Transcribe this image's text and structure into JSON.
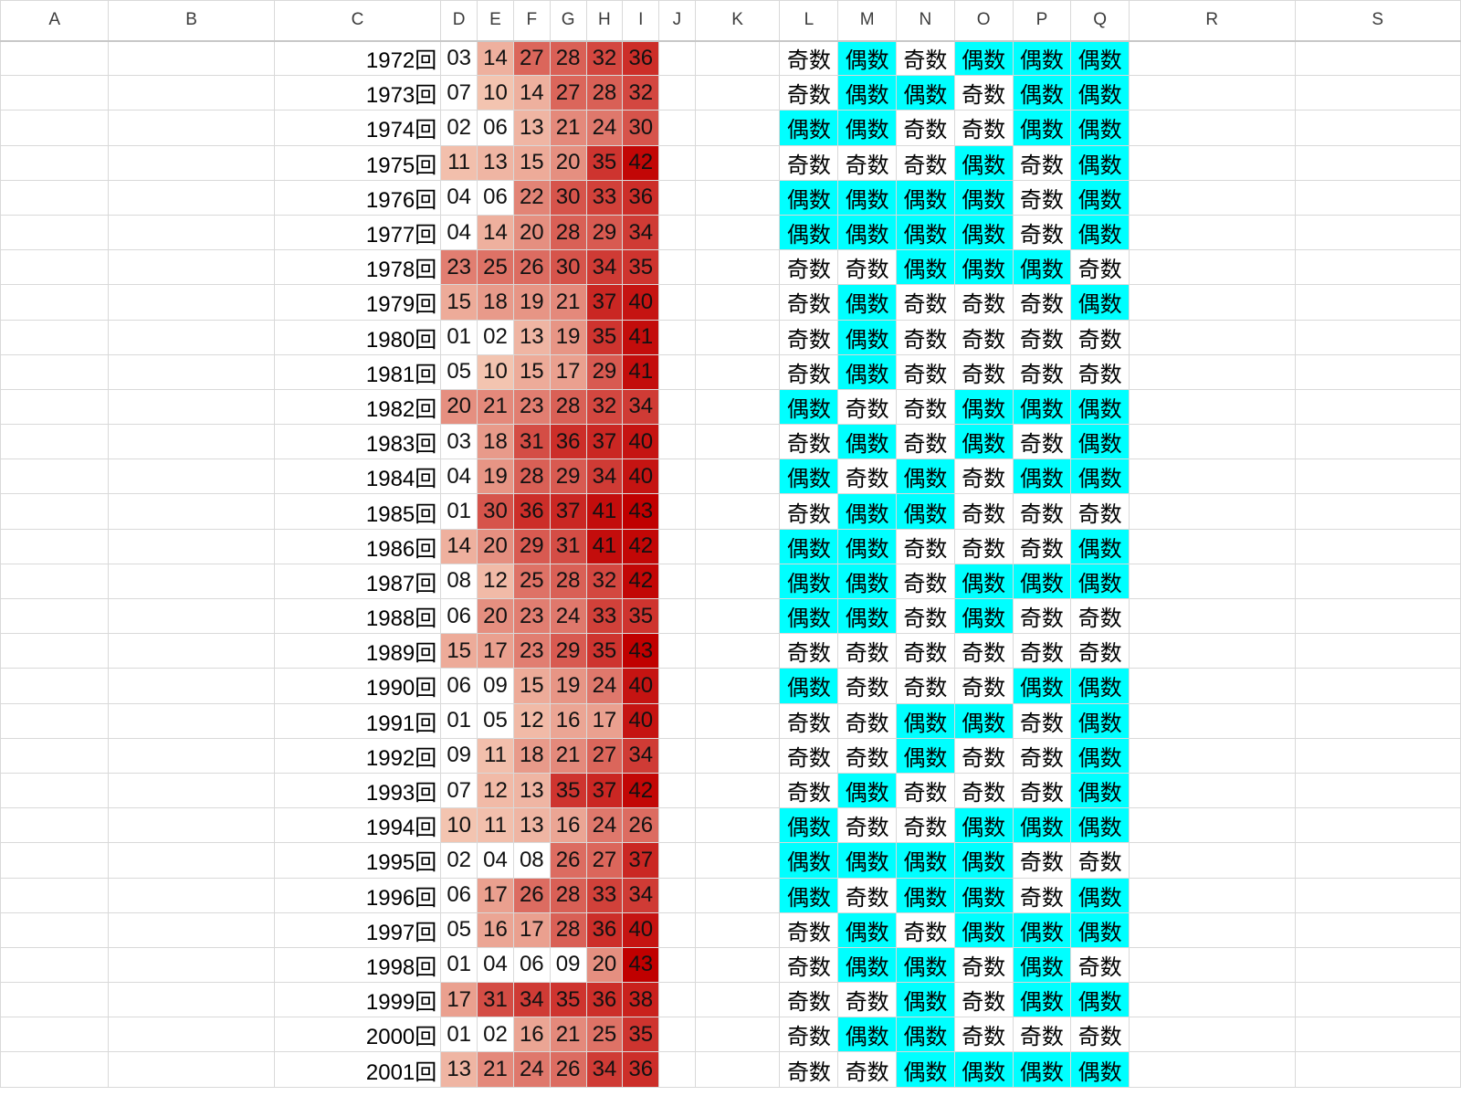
{
  "columns": [
    "A",
    "B",
    "C",
    "D",
    "E",
    "F",
    "G",
    "H",
    "I",
    "J",
    "K",
    "L",
    "M",
    "N",
    "O",
    "P",
    "Q",
    "R",
    "S"
  ],
  "colors": {
    "even_fill": "#00ffff",
    "odd_fill": "#ffffff",
    "heat_low": "#fde9d1",
    "heat_high": "#c00000",
    "heat_min_value": 1,
    "heat_max_value": 43
  },
  "rows": [
    {
      "label": "1972回",
      "nums": [
        "03",
        "14",
        "27",
        "28",
        "32",
        "36"
      ],
      "parity": [
        "奇数",
        "偶数",
        "奇数",
        "偶数",
        "偶数",
        "偶数"
      ]
    },
    {
      "label": "1973回",
      "nums": [
        "07",
        "10",
        "14",
        "27",
        "28",
        "32"
      ],
      "parity": [
        "奇数",
        "偶数",
        "偶数",
        "奇数",
        "偶数",
        "偶数"
      ]
    },
    {
      "label": "1974回",
      "nums": [
        "02",
        "06",
        "13",
        "21",
        "24",
        "30"
      ],
      "parity": [
        "偶数",
        "偶数",
        "奇数",
        "奇数",
        "偶数",
        "偶数"
      ]
    },
    {
      "label": "1975回",
      "nums": [
        "11",
        "13",
        "15",
        "20",
        "35",
        "42"
      ],
      "parity": [
        "奇数",
        "奇数",
        "奇数",
        "偶数",
        "奇数",
        "偶数"
      ]
    },
    {
      "label": "1976回",
      "nums": [
        "04",
        "06",
        "22",
        "30",
        "33",
        "36"
      ],
      "parity": [
        "偶数",
        "偶数",
        "偶数",
        "偶数",
        "奇数",
        "偶数"
      ]
    },
    {
      "label": "1977回",
      "nums": [
        "04",
        "14",
        "20",
        "28",
        "29",
        "34"
      ],
      "parity": [
        "偶数",
        "偶数",
        "偶数",
        "偶数",
        "奇数",
        "偶数"
      ]
    },
    {
      "label": "1978回",
      "nums": [
        "23",
        "25",
        "26",
        "30",
        "34",
        "35"
      ],
      "parity": [
        "奇数",
        "奇数",
        "偶数",
        "偶数",
        "偶数",
        "奇数"
      ]
    },
    {
      "label": "1979回",
      "nums": [
        "15",
        "18",
        "19",
        "21",
        "37",
        "40"
      ],
      "parity": [
        "奇数",
        "偶数",
        "奇数",
        "奇数",
        "奇数",
        "偶数"
      ]
    },
    {
      "label": "1980回",
      "nums": [
        "01",
        "02",
        "13",
        "19",
        "35",
        "41"
      ],
      "parity": [
        "奇数",
        "偶数",
        "奇数",
        "奇数",
        "奇数",
        "奇数"
      ]
    },
    {
      "label": "1981回",
      "nums": [
        "05",
        "10",
        "15",
        "17",
        "29",
        "41"
      ],
      "parity": [
        "奇数",
        "偶数",
        "奇数",
        "奇数",
        "奇数",
        "奇数"
      ]
    },
    {
      "label": "1982回",
      "nums": [
        "20",
        "21",
        "23",
        "28",
        "32",
        "34"
      ],
      "parity": [
        "偶数",
        "奇数",
        "奇数",
        "偶数",
        "偶数",
        "偶数"
      ]
    },
    {
      "label": "1983回",
      "nums": [
        "03",
        "18",
        "31",
        "36",
        "37",
        "40"
      ],
      "parity": [
        "奇数",
        "偶数",
        "奇数",
        "偶数",
        "奇数",
        "偶数"
      ]
    },
    {
      "label": "1984回",
      "nums": [
        "04",
        "19",
        "28",
        "29",
        "34",
        "40"
      ],
      "parity": [
        "偶数",
        "奇数",
        "偶数",
        "奇数",
        "偶数",
        "偶数"
      ]
    },
    {
      "label": "1985回",
      "nums": [
        "01",
        "30",
        "36",
        "37",
        "41",
        "43"
      ],
      "parity": [
        "奇数",
        "偶数",
        "偶数",
        "奇数",
        "奇数",
        "奇数"
      ]
    },
    {
      "label": "1986回",
      "nums": [
        "14",
        "20",
        "29",
        "31",
        "41",
        "42"
      ],
      "parity": [
        "偶数",
        "偶数",
        "奇数",
        "奇数",
        "奇数",
        "偶数"
      ]
    },
    {
      "label": "1987回",
      "nums": [
        "08",
        "12",
        "25",
        "28",
        "32",
        "42"
      ],
      "parity": [
        "偶数",
        "偶数",
        "奇数",
        "偶数",
        "偶数",
        "偶数"
      ]
    },
    {
      "label": "1988回",
      "nums": [
        "06",
        "20",
        "23",
        "24",
        "33",
        "35"
      ],
      "parity": [
        "偶数",
        "偶数",
        "奇数",
        "偶数",
        "奇数",
        "奇数"
      ]
    },
    {
      "label": "1989回",
      "nums": [
        "15",
        "17",
        "23",
        "29",
        "35",
        "43"
      ],
      "parity": [
        "奇数",
        "奇数",
        "奇数",
        "奇数",
        "奇数",
        "奇数"
      ]
    },
    {
      "label": "1990回",
      "nums": [
        "06",
        "09",
        "15",
        "19",
        "24",
        "40"
      ],
      "parity": [
        "偶数",
        "奇数",
        "奇数",
        "奇数",
        "偶数",
        "偶数"
      ]
    },
    {
      "label": "1991回",
      "nums": [
        "01",
        "05",
        "12",
        "16",
        "17",
        "40"
      ],
      "parity": [
        "奇数",
        "奇数",
        "偶数",
        "偶数",
        "奇数",
        "偶数"
      ]
    },
    {
      "label": "1992回",
      "nums": [
        "09",
        "11",
        "18",
        "21",
        "27",
        "34"
      ],
      "parity": [
        "奇数",
        "奇数",
        "偶数",
        "奇数",
        "奇数",
        "偶数"
      ]
    },
    {
      "label": "1993回",
      "nums": [
        "07",
        "12",
        "13",
        "35",
        "37",
        "42"
      ],
      "parity": [
        "奇数",
        "偶数",
        "奇数",
        "奇数",
        "奇数",
        "偶数"
      ]
    },
    {
      "label": "1994回",
      "nums": [
        "10",
        "11",
        "13",
        "16",
        "24",
        "26"
      ],
      "parity": [
        "偶数",
        "奇数",
        "奇数",
        "偶数",
        "偶数",
        "偶数"
      ]
    },
    {
      "label": "1995回",
      "nums": [
        "02",
        "04",
        "08",
        "26",
        "27",
        "37"
      ],
      "parity": [
        "偶数",
        "偶数",
        "偶数",
        "偶数",
        "奇数",
        "奇数"
      ]
    },
    {
      "label": "1996回",
      "nums": [
        "06",
        "17",
        "26",
        "28",
        "33",
        "34"
      ],
      "parity": [
        "偶数",
        "奇数",
        "偶数",
        "偶数",
        "奇数",
        "偶数"
      ]
    },
    {
      "label": "1997回",
      "nums": [
        "05",
        "16",
        "17",
        "28",
        "36",
        "40"
      ],
      "parity": [
        "奇数",
        "偶数",
        "奇数",
        "偶数",
        "偶数",
        "偶数"
      ]
    },
    {
      "label": "1998回",
      "nums": [
        "01",
        "04",
        "06",
        "09",
        "20",
        "43"
      ],
      "parity": [
        "奇数",
        "偶数",
        "偶数",
        "奇数",
        "偶数",
        "奇数"
      ]
    },
    {
      "label": "1999回",
      "nums": [
        "17",
        "31",
        "34",
        "35",
        "36",
        "38"
      ],
      "parity": [
        "奇数",
        "奇数",
        "偶数",
        "奇数",
        "偶数",
        "偶数"
      ]
    },
    {
      "label": "2000回",
      "nums": [
        "01",
        "02",
        "16",
        "21",
        "25",
        "35"
      ],
      "parity": [
        "奇数",
        "偶数",
        "偶数",
        "奇数",
        "奇数",
        "奇数"
      ]
    },
    {
      "label": "2001回",
      "nums": [
        "13",
        "21",
        "24",
        "26",
        "34",
        "36"
      ],
      "parity": [
        "奇数",
        "奇数",
        "偶数",
        "偶数",
        "偶数",
        "偶数"
      ]
    }
  ]
}
